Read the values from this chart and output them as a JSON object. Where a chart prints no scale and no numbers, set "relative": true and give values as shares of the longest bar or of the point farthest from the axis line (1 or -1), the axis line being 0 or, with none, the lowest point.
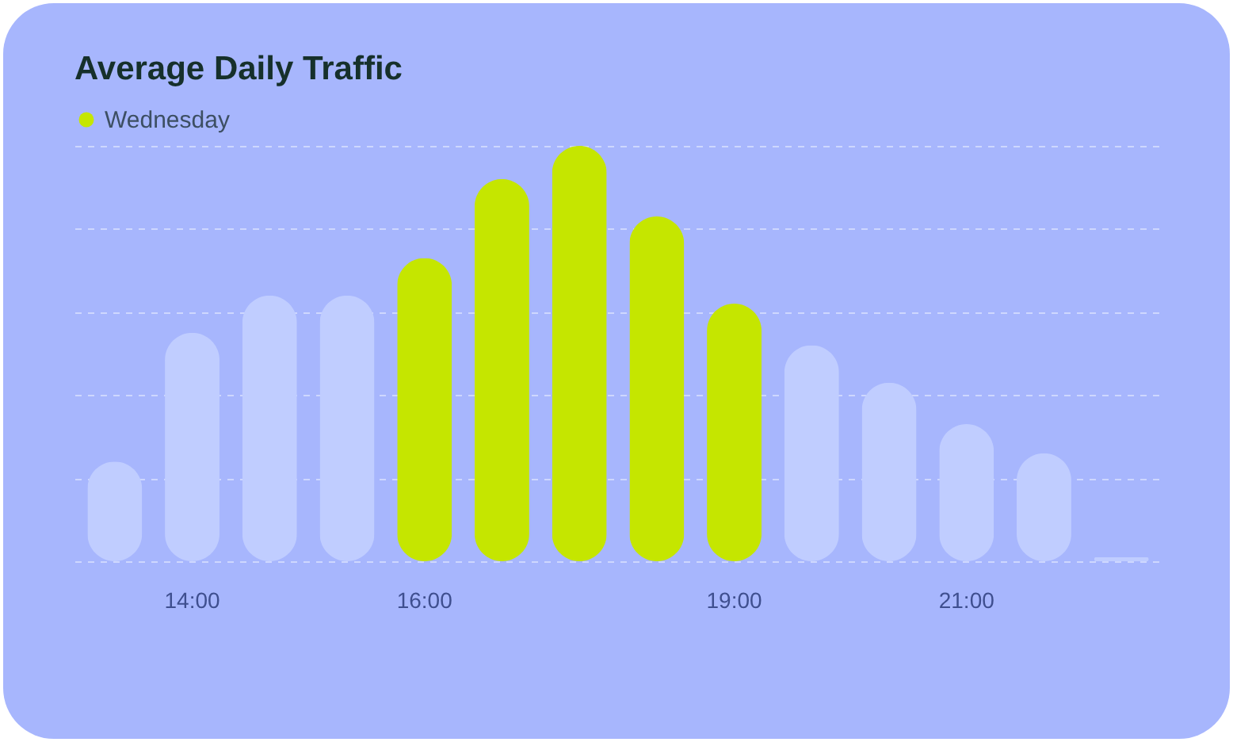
{
  "chart_data": {
    "type": "bar",
    "title": "Average Daily Traffic",
    "relative": true,
    "categories": [
      null,
      "14:00",
      null,
      null,
      "16:00",
      null,
      null,
      null,
      "19:00",
      null,
      null,
      "21:00",
      null,
      null
    ],
    "series": [
      {
        "name": "Wednesday",
        "color": "#c5e600",
        "values": [
          0.24,
          0.55,
          0.64,
          0.64,
          0.73,
          0.92,
          1,
          0.83,
          0.62,
          0.52,
          0.43,
          0.33,
          0.26,
          0.01
        ],
        "colors": [
          "#c0cdff",
          "#c0cdff",
          "#c0cdff",
          "#c0cdff",
          "#c5e600",
          "#c5e600",
          "#c5e600",
          "#c5e600",
          "#c5e600",
          "#c0cdff",
          "#c0cdff",
          "#c0cdff",
          "#c0cdff",
          "#c0cdff"
        ]
      }
    ],
    "legend": "top left",
    "grid": true
  }
}
